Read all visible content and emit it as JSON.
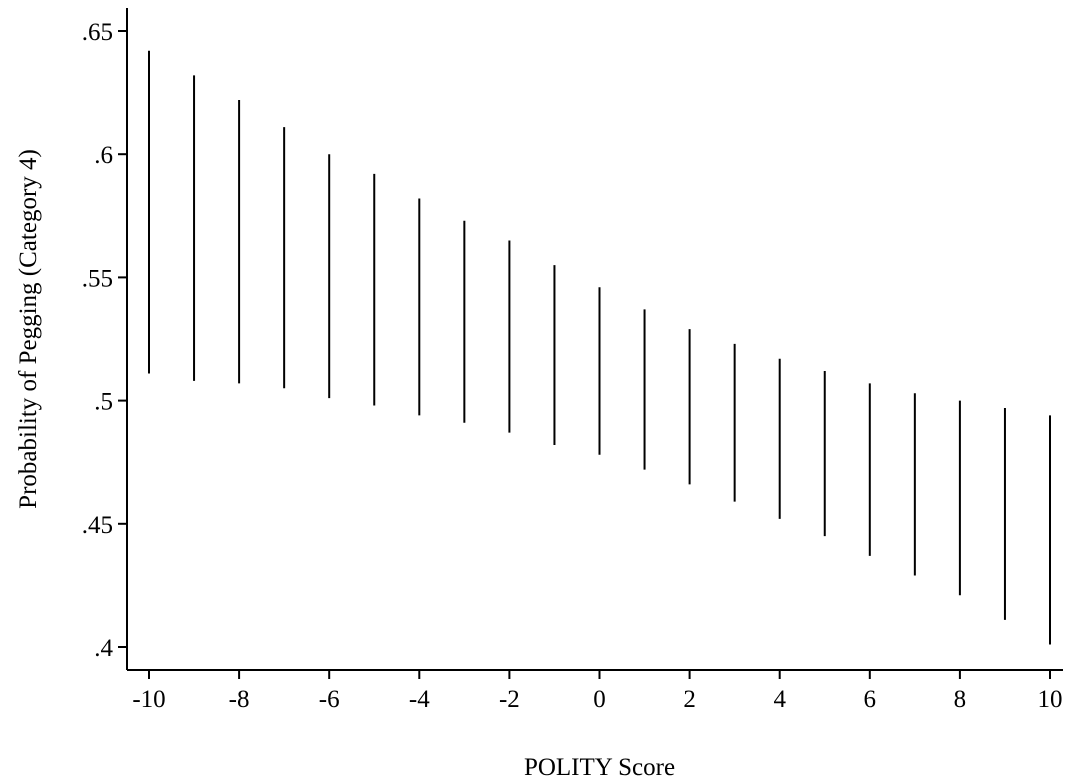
{
  "chart_data": {
    "type": "range-bar",
    "title": "",
    "xlabel": "POLITY Score",
    "ylabel": "Probability of Pegging (Category 4)",
    "xlim": [
      -10,
      10
    ],
    "ylim": [
      0.4,
      0.65
    ],
    "x_ticks": [
      -10,
      -8,
      -6,
      -4,
      -2,
      0,
      2,
      4,
      6,
      8,
      10
    ],
    "x_tick_labels": [
      "-10",
      "-8",
      "-6",
      "-4",
      "-2",
      "0",
      "2",
      "4",
      "6",
      "8",
      "10"
    ],
    "y_ticks": [
      0.4,
      0.45,
      0.5,
      0.55,
      0.6,
      0.65
    ],
    "y_tick_labels": [
      ".4",
      ".45",
      ".5",
      ".55",
      ".6",
      ".65"
    ],
    "grid": false,
    "legend": "none",
    "series": [
      {
        "x": [
          -10,
          -9,
          -8,
          -7,
          -6,
          -5,
          -4,
          -3,
          -2,
          -1,
          0,
          1,
          2,
          3,
          4,
          5,
          6,
          7,
          8,
          9,
          10
        ],
        "low": [
          0.511,
          0.508,
          0.507,
          0.505,
          0.501,
          0.498,
          0.494,
          0.491,
          0.487,
          0.482,
          0.478,
          0.472,
          0.466,
          0.459,
          0.452,
          0.445,
          0.437,
          0.429,
          0.421,
          0.411,
          0.401
        ],
        "high": [
          0.642,
          0.632,
          0.622,
          0.611,
          0.6,
          0.592,
          0.582,
          0.573,
          0.565,
          0.555,
          0.546,
          0.537,
          0.529,
          0.523,
          0.517,
          0.512,
          0.507,
          0.503,
          0.5,
          0.497,
          0.494
        ]
      }
    ],
    "colors": {
      "mark": "#000000",
      "background": "#ffffff"
    }
  }
}
